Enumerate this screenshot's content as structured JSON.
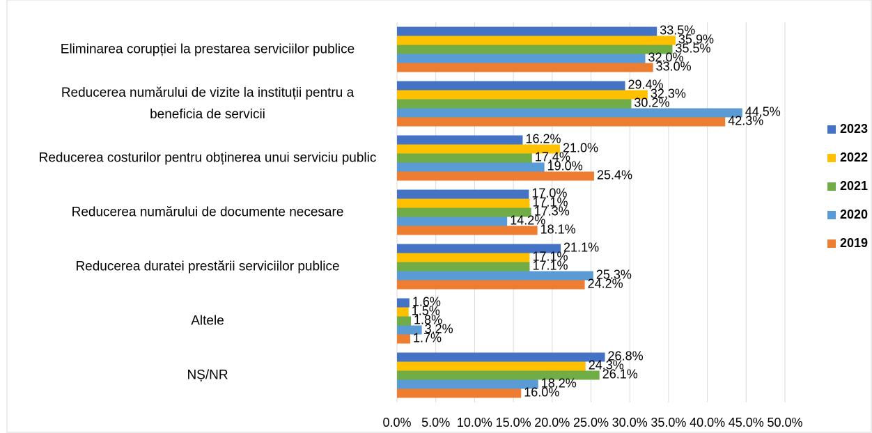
{
  "chart_data": {
    "type": "hbar",
    "categories": [
      "Eliminarea corupției la prestarea serviciilor publice",
      "Reducerea numărului de vizite la instituții pentru a beneficia de servicii",
      "Reducerea costurilor pentru obținerea unui serviciu public",
      "Reducerea numărului de documente necesare",
      "Reducerea duratei prestării serviciilor publice",
      "Altele",
      "NȘ/NR"
    ],
    "series": [
      {
        "name": "2023",
        "color": "#4472c4",
        "values": [
          33.5,
          29.4,
          16.2,
          17.0,
          21.1,
          1.6,
          26.8
        ],
        "value_labels": [
          "33.5%",
          "29.4%",
          "16.2%",
          "17.0%",
          "21.1%",
          "1.6%",
          "26.8%"
        ]
      },
      {
        "name": "2022",
        "color": "#ffc000",
        "values": [
          35.9,
          32.3,
          21.0,
          17.1,
          17.1,
          1.5,
          24.3
        ],
        "value_labels": [
          "35.9%",
          "32.3%",
          "21.0%",
          "17.1%",
          "17.1%",
          "1.5%",
          "24.3%"
        ]
      },
      {
        "name": "2021",
        "color": "#70ad47",
        "values": [
          35.5,
          30.2,
          17.4,
          17.3,
          17.1,
          1.8,
          26.1
        ],
        "value_labels": [
          "35.5%",
          "30.2%",
          "17.4%",
          "17.3%",
          "17.1%",
          "1.8%",
          "26.1%"
        ]
      },
      {
        "name": "2020",
        "color": "#5b9bd5",
        "values": [
          32.0,
          44.5,
          19.0,
          14.2,
          25.3,
          3.2,
          18.2
        ],
        "value_labels": [
          "32.0%",
          "44.5%",
          "19.0%",
          "14.2%",
          "25.3%",
          "3.2%",
          "18.2%"
        ]
      },
      {
        "name": "2019",
        "color": "#ed7d31",
        "values": [
          33.0,
          42.3,
          25.4,
          18.1,
          24.2,
          1.7,
          16.0
        ],
        "value_labels": [
          "33.0%",
          "42.3%",
          "25.4%",
          "18.1%",
          "24.2%",
          "1.7%",
          "16.0%"
        ]
      }
    ],
    "xlim": [
      0,
      50
    ],
    "xticks": [
      {
        "value": 0,
        "label": "0.0%"
      },
      {
        "value": 5,
        "label": "5.0%"
      },
      {
        "value": 10,
        "label": "10.0%"
      },
      {
        "value": 15,
        "label": "15.0%"
      },
      {
        "value": 20,
        "label": "20.0%"
      },
      {
        "value": 25,
        "label": "25.0%"
      },
      {
        "value": 30,
        "label": "30.0%"
      },
      {
        "value": 35,
        "label": "35.0%"
      },
      {
        "value": 40,
        "label": "40.0%"
      },
      {
        "value": 45,
        "label": "45.0%"
      },
      {
        "value": 50,
        "label": "50.0%"
      }
    ],
    "grid": true,
    "legend": "right"
  }
}
